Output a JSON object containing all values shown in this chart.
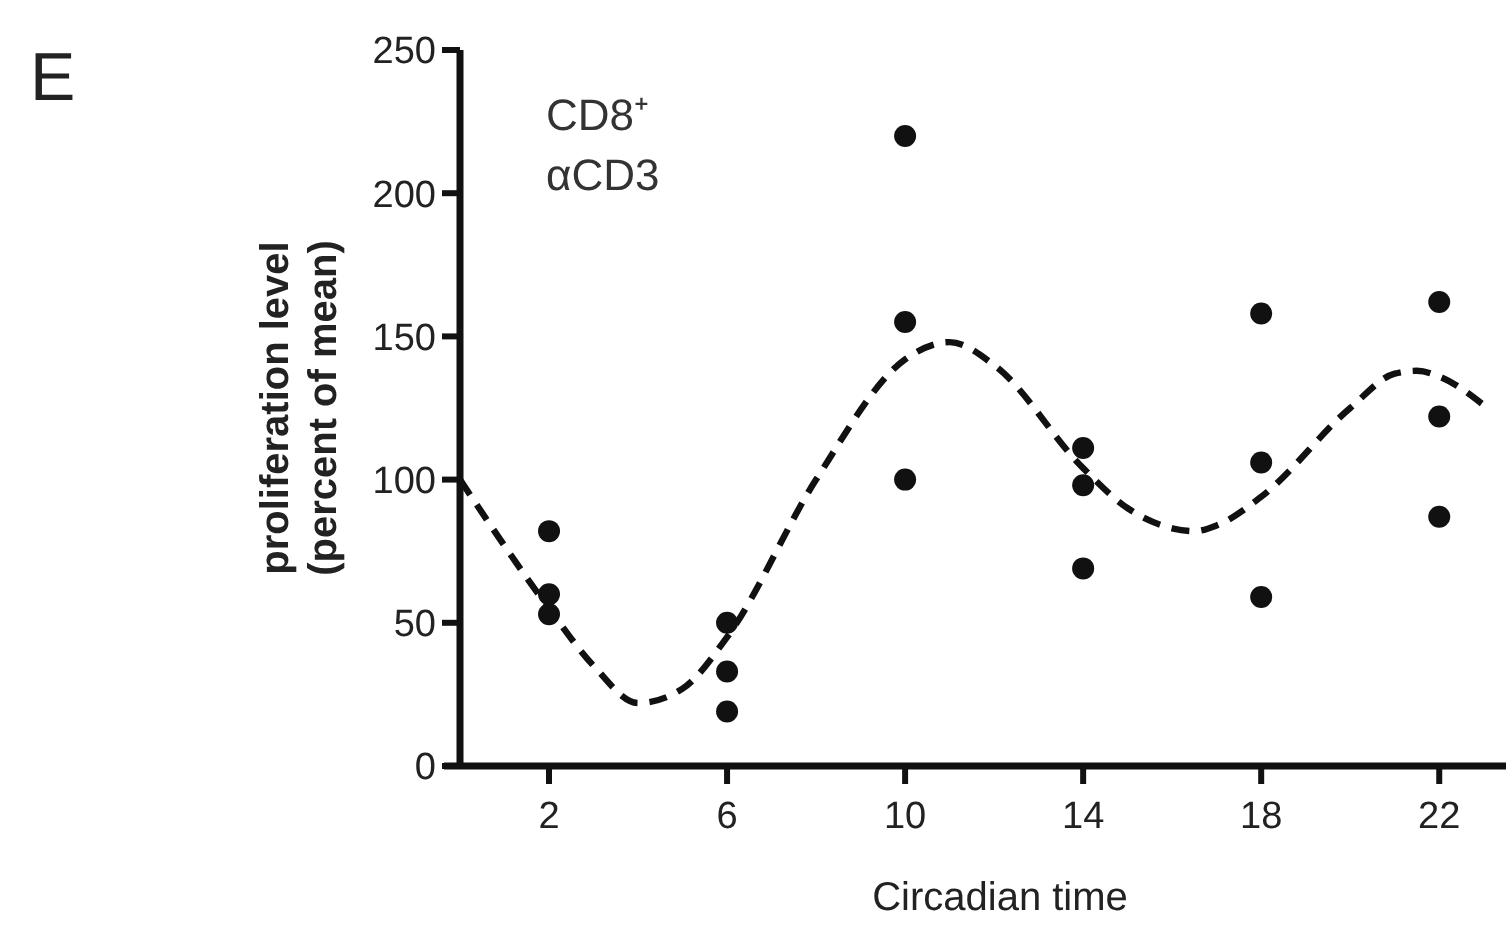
{
  "chart_data": {
    "type": "scatter",
    "xlabel": "Circadian time",
    "ylabel": "proliferation level\n(percent of mean)",
    "annotations": [
      "E",
      "CD8⁺",
      "αCD3"
    ],
    "xlim": [
      0,
      23.5
    ],
    "xticks": [
      2,
      6,
      10,
      14,
      18,
      22
    ],
    "ylim": [
      0,
      250
    ],
    "yticks": [
      0,
      50,
      100,
      150,
      200,
      250
    ],
    "grid": false,
    "series": [
      {
        "color": "#111111",
        "marker": "circle",
        "x": [
          2,
          2,
          2,
          6,
          6,
          6,
          10,
          10,
          10,
          14,
          14,
          14,
          18,
          18,
          18,
          22,
          22,
          22
        ],
        "values": [
          82,
          60,
          53,
          50,
          33,
          19,
          220,
          155,
          100,
          111,
          98,
          69,
          158,
          106,
          59,
          162,
          122,
          87
        ]
      },
      {
        "type": "line",
        "color": "#111111",
        "marker": "none",
        "line_style": "dashed",
        "x": [
          0,
          2,
          3,
          4,
          5,
          6,
          8,
          10,
          11,
          12,
          14,
          15,
          16,
          16.5,
          17,
          18,
          20,
          21,
          21.5,
          22,
          23
        ],
        "values": [
          100,
          55,
          35,
          22,
          27,
          45,
          100,
          142,
          148,
          140,
          104,
          90,
          83,
          82,
          84,
          94,
          125,
          137,
          138,
          136,
          126
        ]
      }
    ]
  }
}
